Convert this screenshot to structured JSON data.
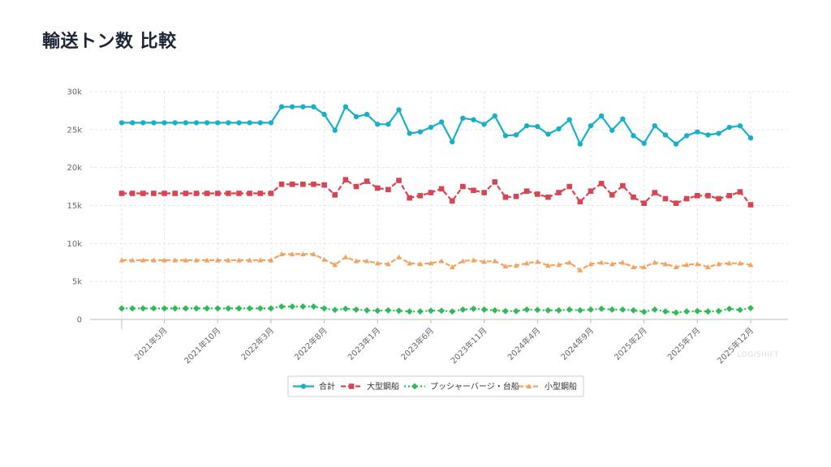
{
  "title": "輸送トン数 比較",
  "watermark": "LOGISHIFT",
  "chart_data": {
    "type": "line",
    "title": "輸送トン数 比較",
    "xlabel": "",
    "ylabel": "",
    "ylim": [
      0,
      30000
    ],
    "yticks": [
      0,
      5000,
      10000,
      15000,
      20000,
      25000,
      30000
    ],
    "ytick_labels": [
      "0",
      "5k",
      "10k",
      "15k",
      "20k",
      "25k",
      "30k"
    ],
    "grid": true,
    "legend": "bottom-center",
    "x": [
      "2021年1月",
      "2021年2月",
      "2021年3月",
      "2021年4月",
      "2021年5月",
      "2021年6月",
      "2021年7月",
      "2021年8月",
      "2021年9月",
      "2021年10月",
      "2021年11月",
      "2021年12月",
      "2022年1月",
      "2022年2月",
      "2022年3月",
      "2022年4月",
      "2022年5月",
      "2022年6月",
      "2022年7月",
      "2022年8月",
      "2022年9月",
      "2022年10月",
      "2022年11月",
      "2022年12月",
      "2023年1月",
      "2023年2月",
      "2023年3月",
      "2023年4月",
      "2023年5月",
      "2023年6月",
      "2023年7月",
      "2023年8月",
      "2023年9月",
      "2023年10月",
      "2023年11月",
      "2023年12月",
      "2024年1月",
      "2024年2月",
      "2024年3月",
      "2024年4月",
      "2024年5月",
      "2024年6月",
      "2024年7月",
      "2024年8月",
      "2024年9月",
      "2024年10月",
      "2024年11月",
      "2024年12月",
      "2025年1月",
      "2025年2月",
      "2025年3月",
      "2025年4月",
      "2025年5月",
      "2025年6月",
      "2025年7月",
      "2025年8月",
      "2025年9月",
      "2025年10月",
      "2025年11月",
      "2025年12月"
    ],
    "xtick_labels": [
      "2021年5月",
      "2021年10月",
      "2022年3月",
      "2022年8月",
      "2023年1月",
      "2023年6月",
      "2023年11月",
      "2024年4月",
      "2024年9月",
      "2025年2月",
      "2025年7月",
      "2025年12月"
    ],
    "series": [
      {
        "name": "合計",
        "color": "#17b0c8",
        "marker": "circle",
        "values": [
          25900,
          25900,
          25900,
          25900,
          25900,
          25900,
          25900,
          25900,
          25900,
          25900,
          25900,
          25900,
          25900,
          25900,
          25900,
          28000,
          28000,
          28000,
          28000,
          27000,
          24900,
          28000,
          26700,
          27000,
          25700,
          25700,
          27600,
          24500,
          24700,
          25300,
          26000,
          23400,
          26500,
          26300,
          25700,
          26800,
          24200,
          24300,
          25500,
          25400,
          24400,
          25100,
          26300,
          23100,
          25500,
          26800,
          24900,
          26400,
          24200,
          23200,
          25500,
          24300,
          23100,
          24200,
          24700,
          24300,
          24500,
          25300,
          25500,
          23900
        ]
      },
      {
        "name": "大型鋼船",
        "color": "#d94452",
        "marker": "square",
        "values": [
          16600,
          16600,
          16600,
          16600,
          16600,
          16600,
          16600,
          16600,
          16600,
          16600,
          16600,
          16600,
          16600,
          16600,
          16600,
          17800,
          17800,
          17800,
          17800,
          17700,
          16400,
          18400,
          17500,
          18200,
          17300,
          17100,
          18300,
          16000,
          16300,
          16700,
          17200,
          15600,
          17500,
          17000,
          16700,
          18100,
          16100,
          16200,
          16900,
          16500,
          16100,
          16700,
          17500,
          15500,
          16900,
          17900,
          16400,
          17600,
          16100,
          15300,
          16700,
          15900,
          15300,
          15900,
          16300,
          16300,
          15900,
          16300,
          16800,
          15100
        ]
      },
      {
        "name": "プッシャーバージ・台船",
        "color": "#2dbb56",
        "marker": "diamond",
        "values": [
          1450,
          1450,
          1450,
          1450,
          1450,
          1450,
          1450,
          1450,
          1450,
          1450,
          1450,
          1450,
          1450,
          1450,
          1450,
          1700,
          1700,
          1700,
          1700,
          1450,
          1250,
          1400,
          1300,
          1200,
          1150,
          1200,
          1150,
          1050,
          1050,
          1150,
          1150,
          1050,
          1300,
          1400,
          1300,
          1200,
          1100,
          1100,
          1300,
          1250,
          1200,
          1200,
          1300,
          1200,
          1300,
          1400,
          1300,
          1300,
          1200,
          1000,
          1300,
          1050,
          900,
          1050,
          1100,
          1050,
          1100,
          1400,
          1250,
          1500
        ]
      },
      {
        "name": "小型鋼船",
        "color": "#f1a460",
        "marker": "triangle",
        "values": [
          7800,
          7800,
          7800,
          7800,
          7800,
          7800,
          7800,
          7800,
          7800,
          7800,
          7800,
          7800,
          7800,
          7800,
          7800,
          8600,
          8600,
          8600,
          8600,
          7900,
          7200,
          8200,
          7700,
          7700,
          7400,
          7300,
          8200,
          7400,
          7300,
          7400,
          7700,
          6900,
          7700,
          7800,
          7600,
          7700,
          7000,
          7100,
          7400,
          7600,
          7100,
          7200,
          7500,
          6500,
          7300,
          7500,
          7300,
          7500,
          6900,
          6900,
          7500,
          7300,
          6900,
          7200,
          7300,
          6900,
          7300,
          7400,
          7400,
          7200
        ]
      }
    ]
  }
}
